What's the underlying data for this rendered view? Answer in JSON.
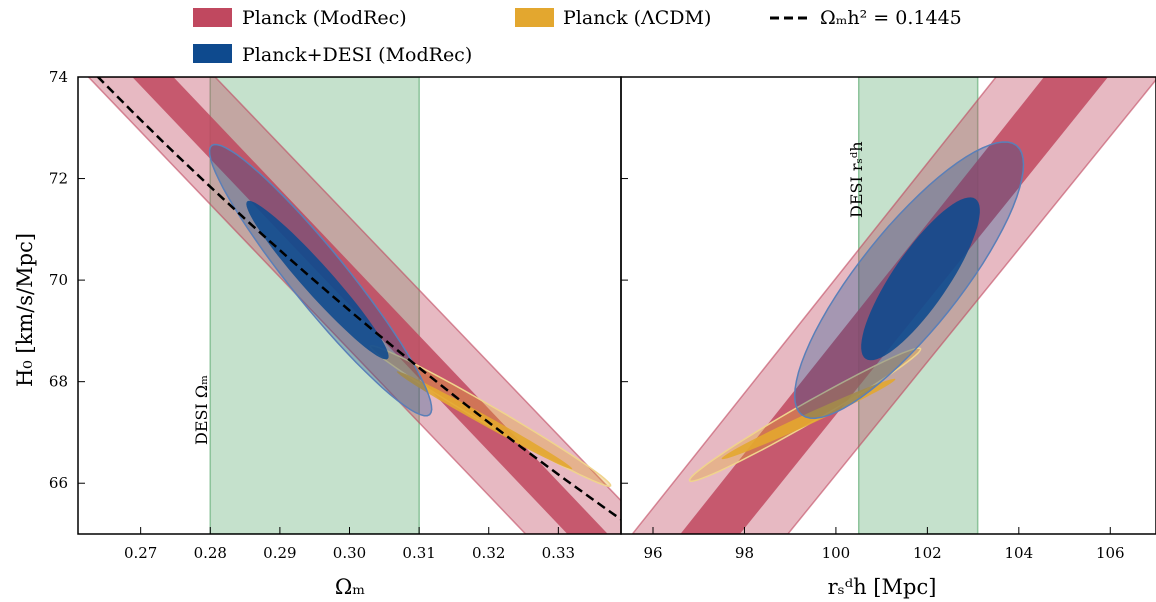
{
  "legend": {
    "items": [
      {
        "label": "Planck (ModRec)",
        "color": "#c0485f",
        "kind": "patch"
      },
      {
        "label": "Planck (ΛCDM)",
        "color": "#e3a72f",
        "kind": "patch"
      },
      {
        "label": "Ωₘh² = 0.1445",
        "color": "#000000",
        "kind": "dashed-line"
      },
      {
        "label": "Planck+DESI (ModRec)",
        "color": "#0e4a8e",
        "kind": "patch"
      }
    ]
  },
  "colors": {
    "planck_modrec": "#c0485f",
    "planck_lcdm": "#e3a72f",
    "planck_desi_modrec": "#0e4a8e",
    "desi_band": "#8cc39a"
  },
  "chart_data": [
    {
      "type": "scatter",
      "subtype": "confidence-contours",
      "ylabel": "H₀ [km/s/Mpc]",
      "xlabel": "Ωₘ",
      "xlim": [
        0.261,
        0.339
      ],
      "ylim": [
        65,
        74
      ],
      "xticks": [
        "0.27",
        "0.28",
        "0.29",
        "0.30",
        "0.31",
        "0.32",
        "0.33"
      ],
      "yticks": [
        "66",
        "68",
        "70",
        "72",
        "74"
      ],
      "grid": false,
      "vband": {
        "label": "DESI Ωₘ",
        "x_range": [
          0.28,
          0.31
        ]
      },
      "line": {
        "name": "Ωₘh² = 0.1445",
        "style": "dashed",
        "omh2": 0.1445
      },
      "series": [
        {
          "name": "Planck (ModRec)",
          "kind": "band",
          "x_at_top": [
            0.2625,
            0.2688,
            0.2747,
            0.2807
          ],
          "x_at_bottom": [
            0.3253,
            0.3313,
            0.3371,
            0.3436
          ]
        },
        {
          "name": "Planck (ΛCDM)",
          "kind": "ellipse",
          "contour_68": {
            "p1": [
              0.3068,
              68.2
            ],
            "p2": [
              0.332,
              66.28
            ],
            "half_width": 0.0007
          },
          "contour_95": {
            "p1": [
              0.303,
              68.7
            ],
            "p2": [
              0.3375,
              65.95
            ],
            "half_width": 0.0013
          }
        },
        {
          "name": "Planck+DESI (ModRec)",
          "kind": "ellipse",
          "contour_68": {
            "p1": [
              0.2853,
              71.55
            ],
            "p2": [
              0.3055,
              68.45
            ],
            "half_width": 0.0021
          },
          "contour_95": {
            "p1": [
              0.2802,
              72.65
            ],
            "p2": [
              0.3115,
              67.35
            ],
            "half_width": 0.004
          }
        }
      ]
    },
    {
      "type": "scatter",
      "subtype": "confidence-contours",
      "xlabel": "rₛᵈh [Mpc]",
      "xlim": [
        95.3,
        107.0
      ],
      "ylim": [
        65,
        74
      ],
      "xticks": [
        "96",
        "98",
        "100",
        "102",
        "104",
        "106"
      ],
      "grid": false,
      "vband": {
        "label": "DESI rₛᵈh",
        "x_range": [
          100.5,
          103.1
        ]
      },
      "series": [
        {
          "name": "Planck (ModRec)",
          "kind": "band",
          "x_at_top": [
            103.5,
            104.55,
            105.95,
            107.05
          ],
          "x_at_bottom": [
            95.55,
            96.6,
            97.9,
            98.95
          ]
        },
        {
          "name": "Planck (ΛCDM)",
          "kind": "ellipse",
          "contour_68": {
            "p1": [
              97.5,
              66.48
            ],
            "p2": [
              101.3,
              68.05
            ],
            "half_width": 0.12
          },
          "contour_95": {
            "p1": [
              96.8,
              66.05
            ],
            "p2": [
              101.85,
              68.65
            ],
            "half_width": 0.22
          }
        },
        {
          "name": "Planck+DESI (ModRec)",
          "kind": "ellipse",
          "contour_68": {
            "p1": [
              100.65,
              68.45
            ],
            "p2": [
              103.05,
              71.6
            ],
            "half_width": 0.6
          },
          "contour_95": {
            "p1": [
              99.25,
              67.35
            ],
            "p2": [
              103.95,
              72.65
            ],
            "half_width": 1.1
          }
        }
      ]
    }
  ]
}
